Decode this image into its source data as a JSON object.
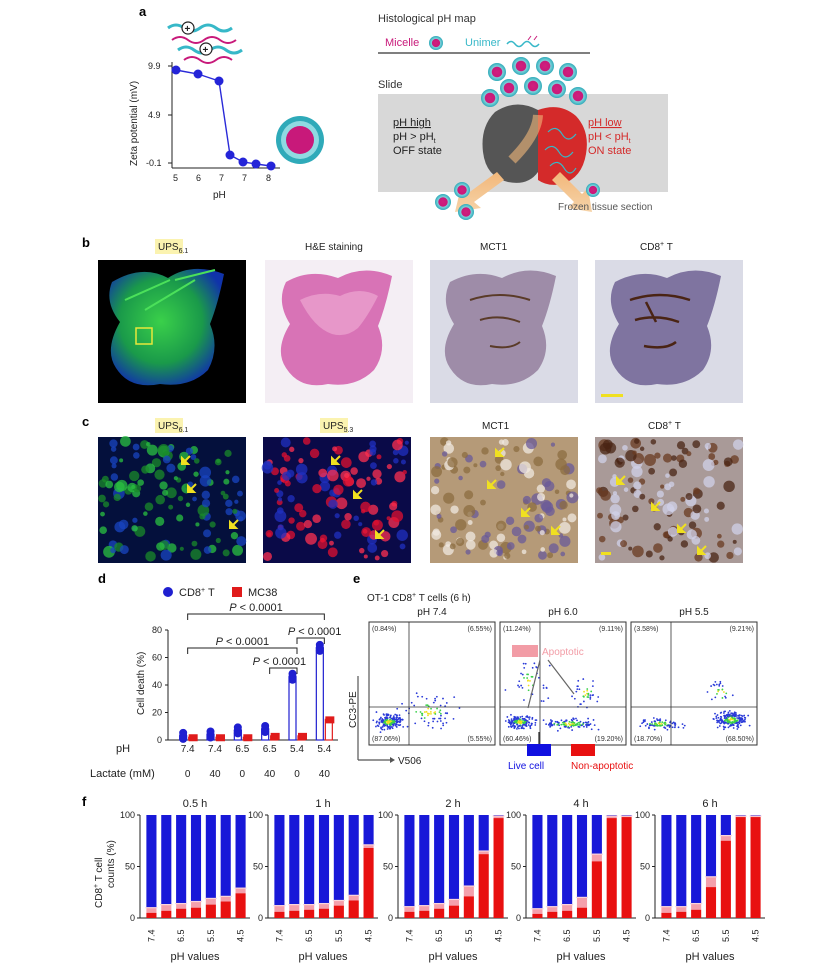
{
  "panel_letters": {
    "a": "a",
    "b": "b",
    "c": "c",
    "d": "d",
    "e": "e",
    "f": "f"
  },
  "panel_a": {
    "map_title": "Histological pH map",
    "micelle_label": "Micelle",
    "unimer_label": "Unimer",
    "slide_label": "Slide",
    "ph_high_label": "pH high",
    "ph_high_cond": "pH > pH",
    "ph_high_sub": "t",
    "off_state": "OFF state",
    "ph_low_label": "pH low",
    "ph_low_cond": "pH < pH",
    "ph_low_sub": "t",
    "on_state": "ON state",
    "frozen_label": "Frozen tissue section",
    "colors": {
      "micelle": "#c8197a",
      "unimer": "#37b8c8",
      "on_red": "#d42a2a"
    }
  },
  "panel_b": {
    "titles": [
      {
        "main": "UPS",
        "sub": "6.1"
      },
      {
        "main": "H&E staining",
        "sub": ""
      },
      {
        "main": "MCT1",
        "sub": ""
      },
      {
        "main": "CD8",
        "sup": "+",
        "tail": " T"
      }
    ]
  },
  "panel_c": {
    "titles": [
      {
        "main": "UPS",
        "sub": "6.1"
      },
      {
        "main": "UPS",
        "sub": "5.3"
      },
      {
        "main": "MCT1",
        "sub": ""
      },
      {
        "main": "CD8",
        "sup": "+",
        "tail": " T"
      }
    ]
  },
  "panel_d": {
    "ph_row_label": "pH",
    "lactate_row_label": "Lactate (mM)",
    "ph_values": [
      "7.4",
      "7.4",
      "6.5",
      "6.5",
      "5.4",
      "5.4"
    ],
    "lactate_values": [
      "0",
      "40",
      "0",
      "40",
      "0",
      "40"
    ],
    "sig_labels": [
      "P < 0.0001",
      "P < 0.0001",
      "P < 0.0001",
      "P < 0.0001"
    ]
  },
  "panel_e": {
    "title": "OT-1 CD8",
    "title_sup": "+",
    "title_tail": " T cells (6 h)",
    "ylabel": "CC3-PE",
    "xlabel": "V506",
    "plots": [
      {
        "title": "pH 7.4",
        "q_ul": "(0.84%)",
        "q_ur": "(6.55%)",
        "q_ll": "(87.06%)",
        "q_lr": "(5.55%)"
      },
      {
        "title": "pH 6.0",
        "q_ul": "(11.24%)",
        "q_ur": "(9.11%)",
        "q_ll": "(60.46%)",
        "q_lr": "(19.20%)"
      },
      {
        "title": "pH 5.5",
        "q_ul": "(3.58%)",
        "q_ur": "(9.21%)",
        "q_ll": "(18.70%)",
        "q_lr": "(68.50%)"
      }
    ],
    "apoptotic_label": "Apoptotic",
    "live_label": "Live cell",
    "nonapop_label": "Non-apoptotic",
    "colors": {
      "apoptotic": "#f29ca6",
      "live": "#1010e0",
      "nonapop": "#e81010"
    }
  },
  "chart_data": [
    {
      "id": "d",
      "type": "bar",
      "ylabel": "Cell death (%)",
      "ylim": [
        0,
        80
      ],
      "yticks": [
        0,
        20,
        40,
        60,
        80
      ],
      "legend_position": "top",
      "categories": [
        "7.4 / 0",
        "7.4 / 40",
        "6.5 / 0",
        "6.5 / 40",
        "5.4 / 0",
        "5.4 / 40"
      ],
      "series": [
        {
          "name": "CD8+ T",
          "color": "#1f1fd0",
          "values": [
            3,
            4,
            7,
            8,
            46,
            67
          ]
        },
        {
          "name": "MC38",
          "color": "#e01b1b",
          "values": [
            2,
            2,
            2,
            3,
            3,
            15
          ]
        }
      ]
    },
    {
      "id": "f",
      "type": "bar",
      "stacked": true,
      "ylabel": "CD8+ T cell counts (%)",
      "xlabel": "pH values",
      "ylim": [
        0,
        100
      ],
      "yticks": [
        0,
        50,
        100
      ],
      "xtick_labels": [
        "7.4",
        "6.5",
        "5.5",
        "4.5"
      ],
      "ph_x": [
        7.4,
        7.0,
        6.5,
        6.0,
        5.5,
        5.0,
        4.5
      ],
      "layer_colors": {
        "nonapoptotic": "#e81010",
        "apoptotic": "#f4a0ac",
        "live": "#1818d8"
      },
      "panels": [
        {
          "title": "0.5 h",
          "nonapoptotic": [
            5,
            7,
            9,
            10,
            13,
            16,
            24
          ],
          "apoptotic": [
            5,
            6,
            5,
            6,
            6,
            5,
            5
          ]
        },
        {
          "title": "1 h",
          "nonapoptotic": [
            6,
            7,
            8,
            9,
            12,
            17,
            68
          ],
          "apoptotic": [
            6,
            6,
            5,
            5,
            5,
            5,
            3
          ]
        },
        {
          "title": "2 h",
          "nonapoptotic": [
            6,
            7,
            9,
            12,
            21,
            62,
            97
          ],
          "apoptotic": [
            5,
            5,
            5,
            6,
            10,
            3,
            2
          ]
        },
        {
          "title": "4 h",
          "nonapoptotic": [
            4,
            6,
            7,
            10,
            55,
            97,
            98
          ],
          "apoptotic": [
            5,
            5,
            6,
            10,
            7,
            2,
            1
          ]
        },
        {
          "title": "6 h",
          "nonapoptotic": [
            5,
            6,
            8,
            30,
            75,
            98,
            98
          ],
          "apoptotic": [
            6,
            5,
            6,
            10,
            5,
            1,
            1
          ]
        }
      ]
    }
  ]
}
